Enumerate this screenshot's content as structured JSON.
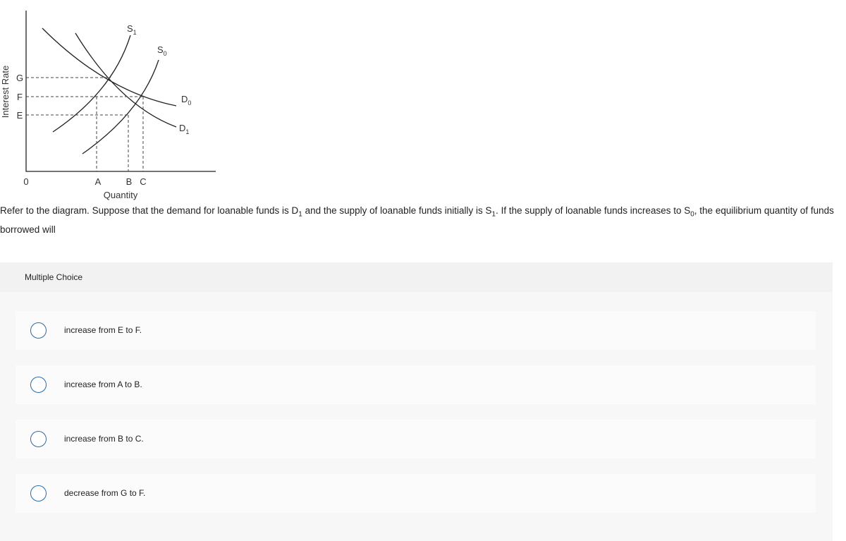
{
  "diagram": {
    "y_axis_label": "Interest Rate",
    "x_axis_label": "Quantity",
    "y_levels": [
      "G",
      "F",
      "E"
    ],
    "origin": "0",
    "x_levels": [
      "A",
      "B",
      "C"
    ],
    "curves": [
      {
        "letter": "S",
        "sub": "1"
      },
      {
        "letter": "S",
        "sub": "0"
      },
      {
        "letter": "D",
        "sub": "0"
      },
      {
        "letter": "D",
        "sub": "1"
      }
    ]
  },
  "question": {
    "parts": [
      "Refer to the diagram. Suppose that the demand for loanable funds is D",
      "1",
      " and the supply of loanable funds initially is S",
      "1",
      ". If the supply of loanable funds increases to S",
      "0",
      ", the equilibrium quantity of funds borrowed will"
    ]
  },
  "section_title": "Multiple Choice",
  "options": [
    "increase from E to F.",
    "increase from A to B.",
    "increase from B to C.",
    "decrease from G to F."
  ]
}
